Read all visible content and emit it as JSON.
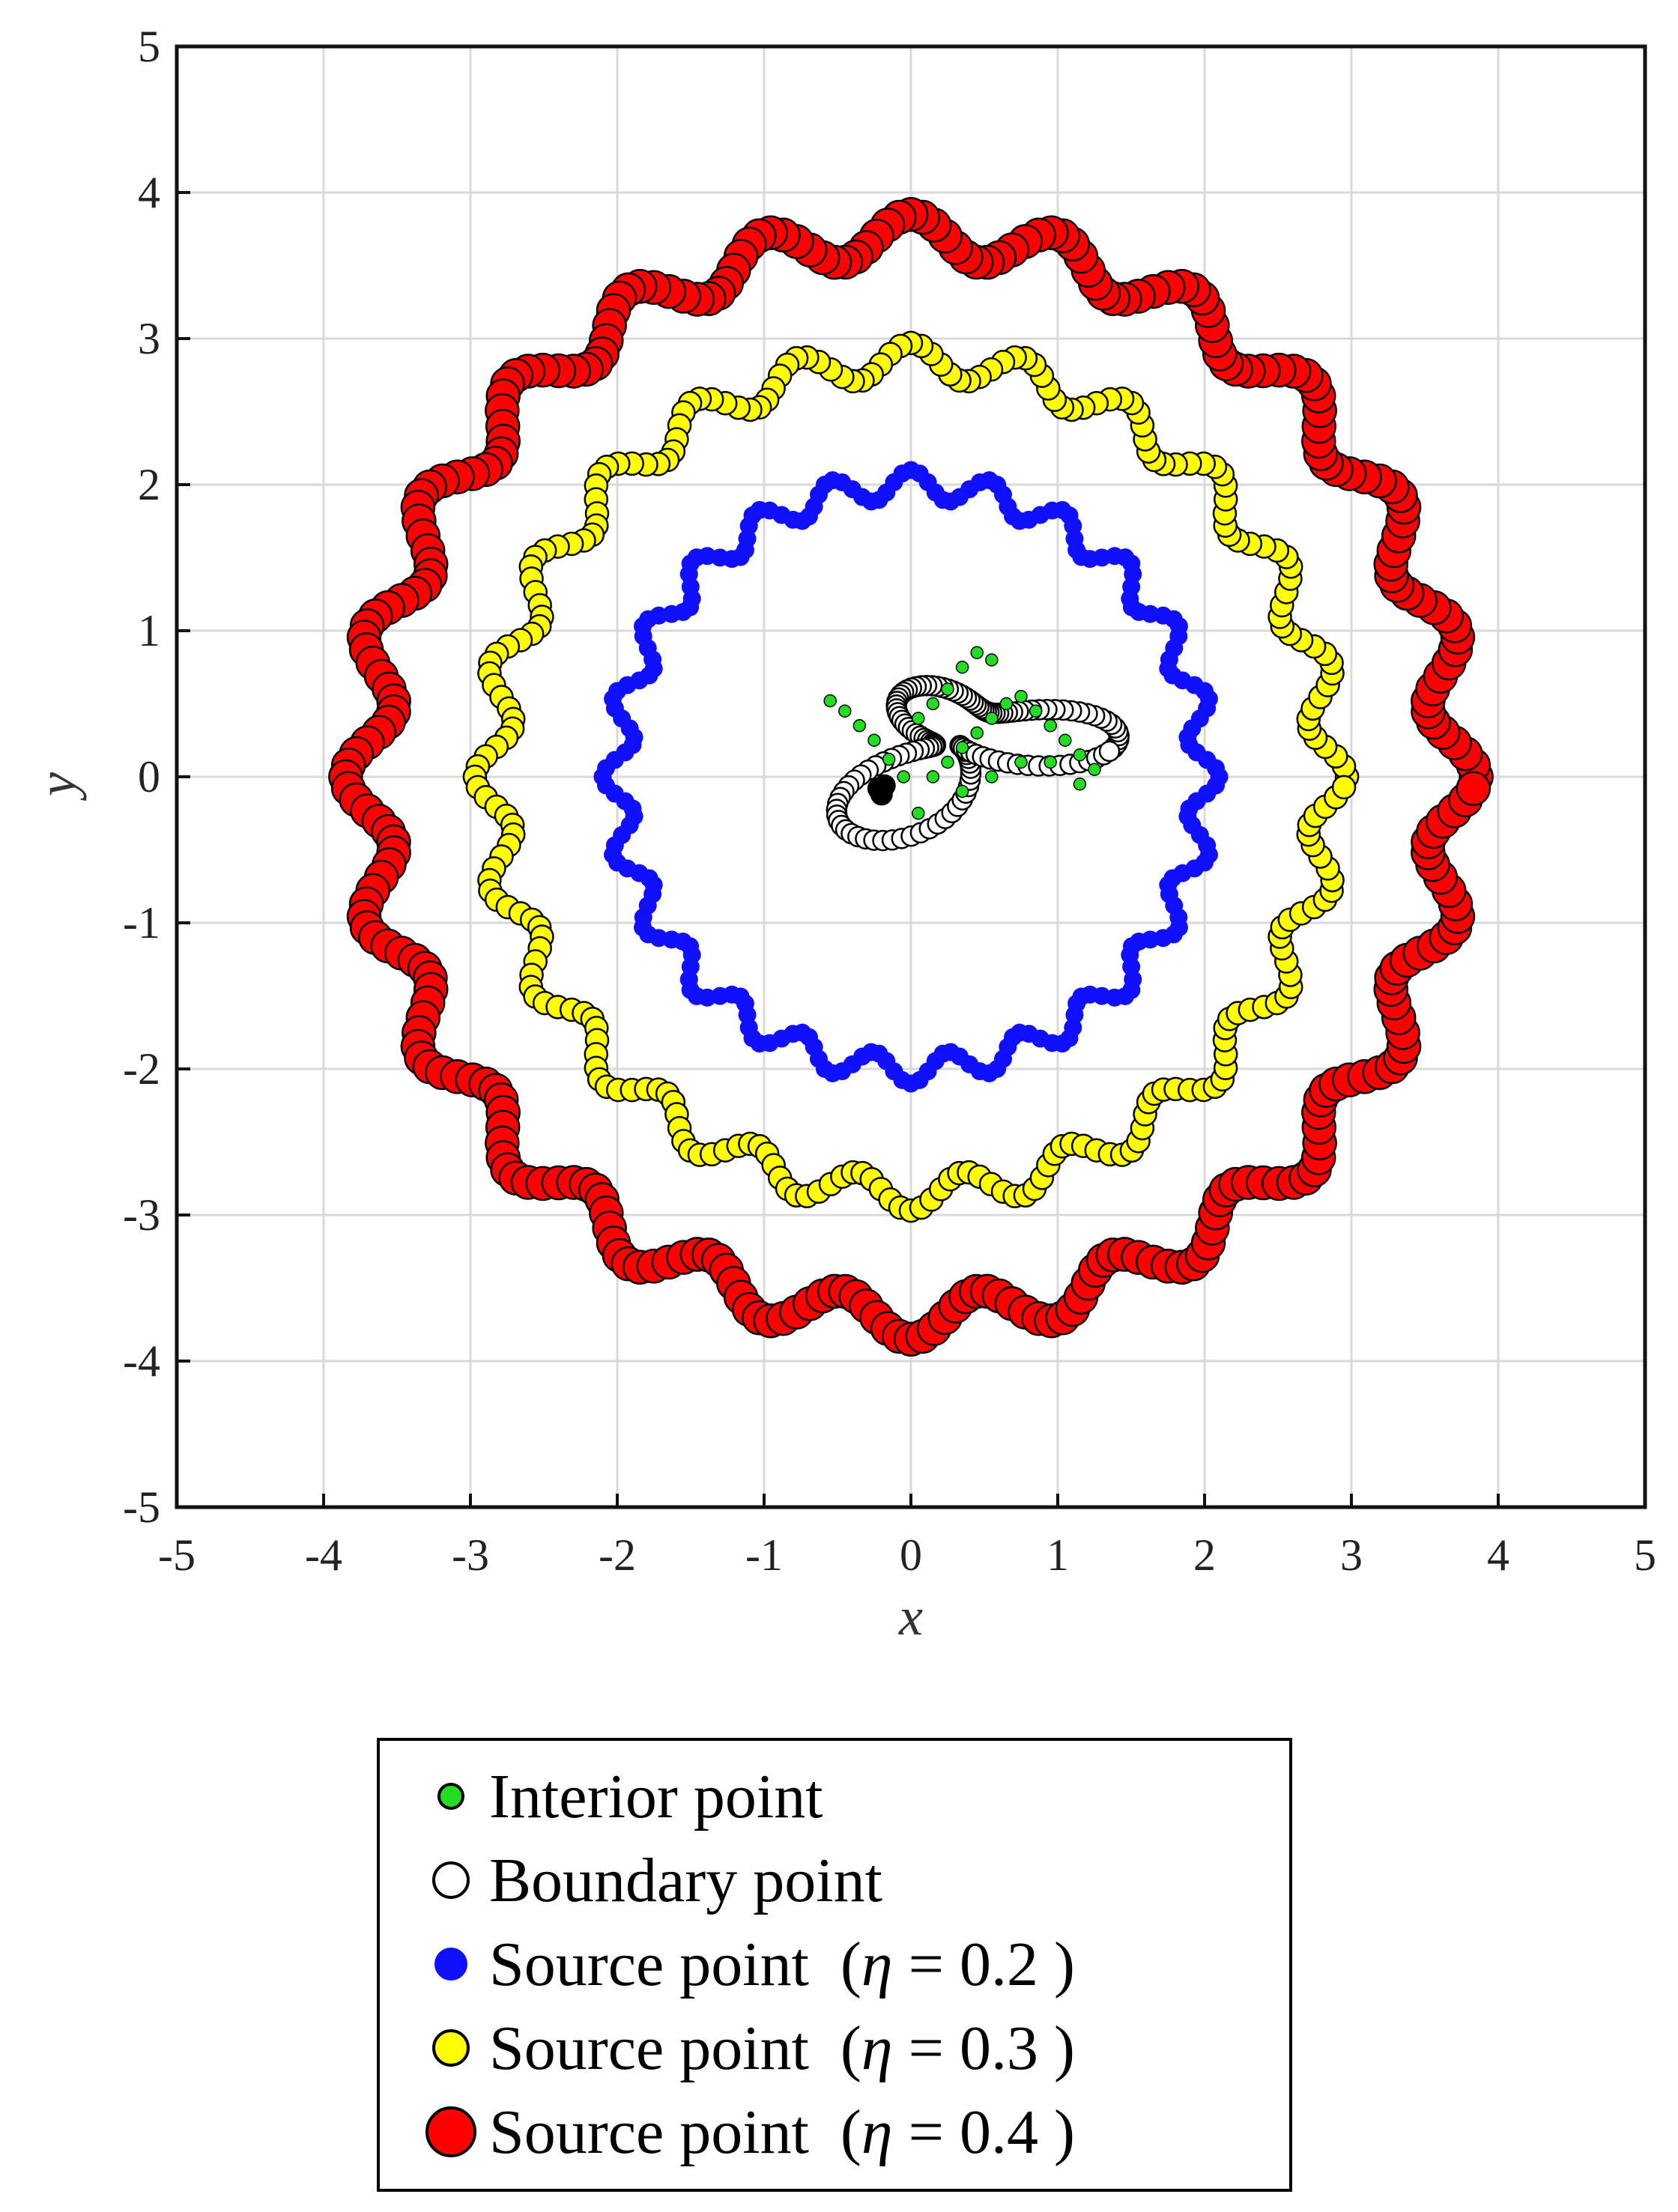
{
  "chart_data": {
    "type": "scatter",
    "xlabel": "x",
    "ylabel": "y",
    "xlim": [
      -5,
      5
    ],
    "ylim": [
      -5,
      5
    ],
    "xticks": [
      -5,
      -4,
      -3,
      -2,
      -1,
      0,
      1,
      2,
      3,
      4,
      5
    ],
    "yticks": [
      -5,
      -4,
      -3,
      -2,
      -1,
      0,
      1,
      2,
      3,
      4,
      5
    ],
    "grid": true,
    "legend_position": "below",
    "series": [
      {
        "name": "Interior point",
        "color": "#22dd22",
        "marker": "small filled circle",
        "points": [
          [
            -0.55,
            0.52
          ],
          [
            -0.45,
            0.45
          ],
          [
            -0.35,
            0.35
          ],
          [
            -0.25,
            0.25
          ],
          [
            -0.15,
            0.12
          ],
          [
            -0.05,
            0.0
          ],
          [
            0.05,
            0.4
          ],
          [
            0.15,
            0.5
          ],
          [
            0.25,
            0.6
          ],
          [
            0.35,
            0.75
          ],
          [
            0.45,
            0.85
          ],
          [
            0.55,
            0.8
          ],
          [
            0.05,
            -0.25
          ],
          [
            0.15,
            0.0
          ],
          [
            0.25,
            0.1
          ],
          [
            0.35,
            0.2
          ],
          [
            0.45,
            0.3
          ],
          [
            0.55,
            0.4
          ],
          [
            0.65,
            0.5
          ],
          [
            0.75,
            0.55
          ],
          [
            0.85,
            0.45
          ],
          [
            0.95,
            0.35
          ],
          [
            1.05,
            0.25
          ],
          [
            1.15,
            0.15
          ],
          [
            1.25,
            0.05
          ],
          [
            0.35,
            -0.1
          ],
          [
            0.55,
            0.0
          ],
          [
            0.75,
            0.1
          ],
          [
            0.95,
            0.1
          ],
          [
            1.15,
            -0.05
          ]
        ]
      },
      {
        "name": "Boundary point",
        "color": "#ffffff",
        "marker": "hollow circle",
        "shape": "tilted three-lobed closed curve around the interior points, spanning x from about -0.7 to 1.45 and y from about -0.55 to 0.95"
      },
      {
        "name": "Source point (η = 0.2 )",
        "color": "#1010ff",
        "marker": "filled circle",
        "shape": "wavy ring centered at (0, 0)",
        "mean_radius": 2.0,
        "wave_amplitude": 0.1,
        "waves_per_turn": 24
      },
      {
        "name": "Source point (η = 0.3 )",
        "color": "#ffff00",
        "marker": "filled circle",
        "shape": "wavy ring centered at (0, 0)",
        "mean_radius": 2.85,
        "wave_amplitude": 0.12,
        "waves_per_turn": 24
      },
      {
        "name": "Source point (η = 0.4 )",
        "color": "#ff0000",
        "marker": "large filled circle",
        "shape": "wavy ring centered at (0, 0)",
        "mean_radius": 3.7,
        "wave_amplitude": 0.15,
        "waves_per_turn": 24
      }
    ]
  },
  "legend": {
    "items": [
      {
        "label": "Interior point",
        "color": "#22dd22",
        "marker": "small"
      },
      {
        "label": "Boundary point",
        "color": "#ffffff",
        "marker": "medium"
      },
      {
        "label_prefix": "Source point  (",
        "symbol": "η",
        "label_suffix": " = 0.2 )",
        "color": "#1010ff",
        "marker": "medium"
      },
      {
        "label_prefix": "Source point  (",
        "symbol": "η",
        "label_suffix": " = 0.3 )",
        "color": "#ffff00",
        "marker": "medium"
      },
      {
        "label_prefix": "Source point  (",
        "symbol": "η",
        "label_suffix": " = 0.4 )",
        "color": "#ff0000",
        "marker": "large"
      }
    ]
  }
}
